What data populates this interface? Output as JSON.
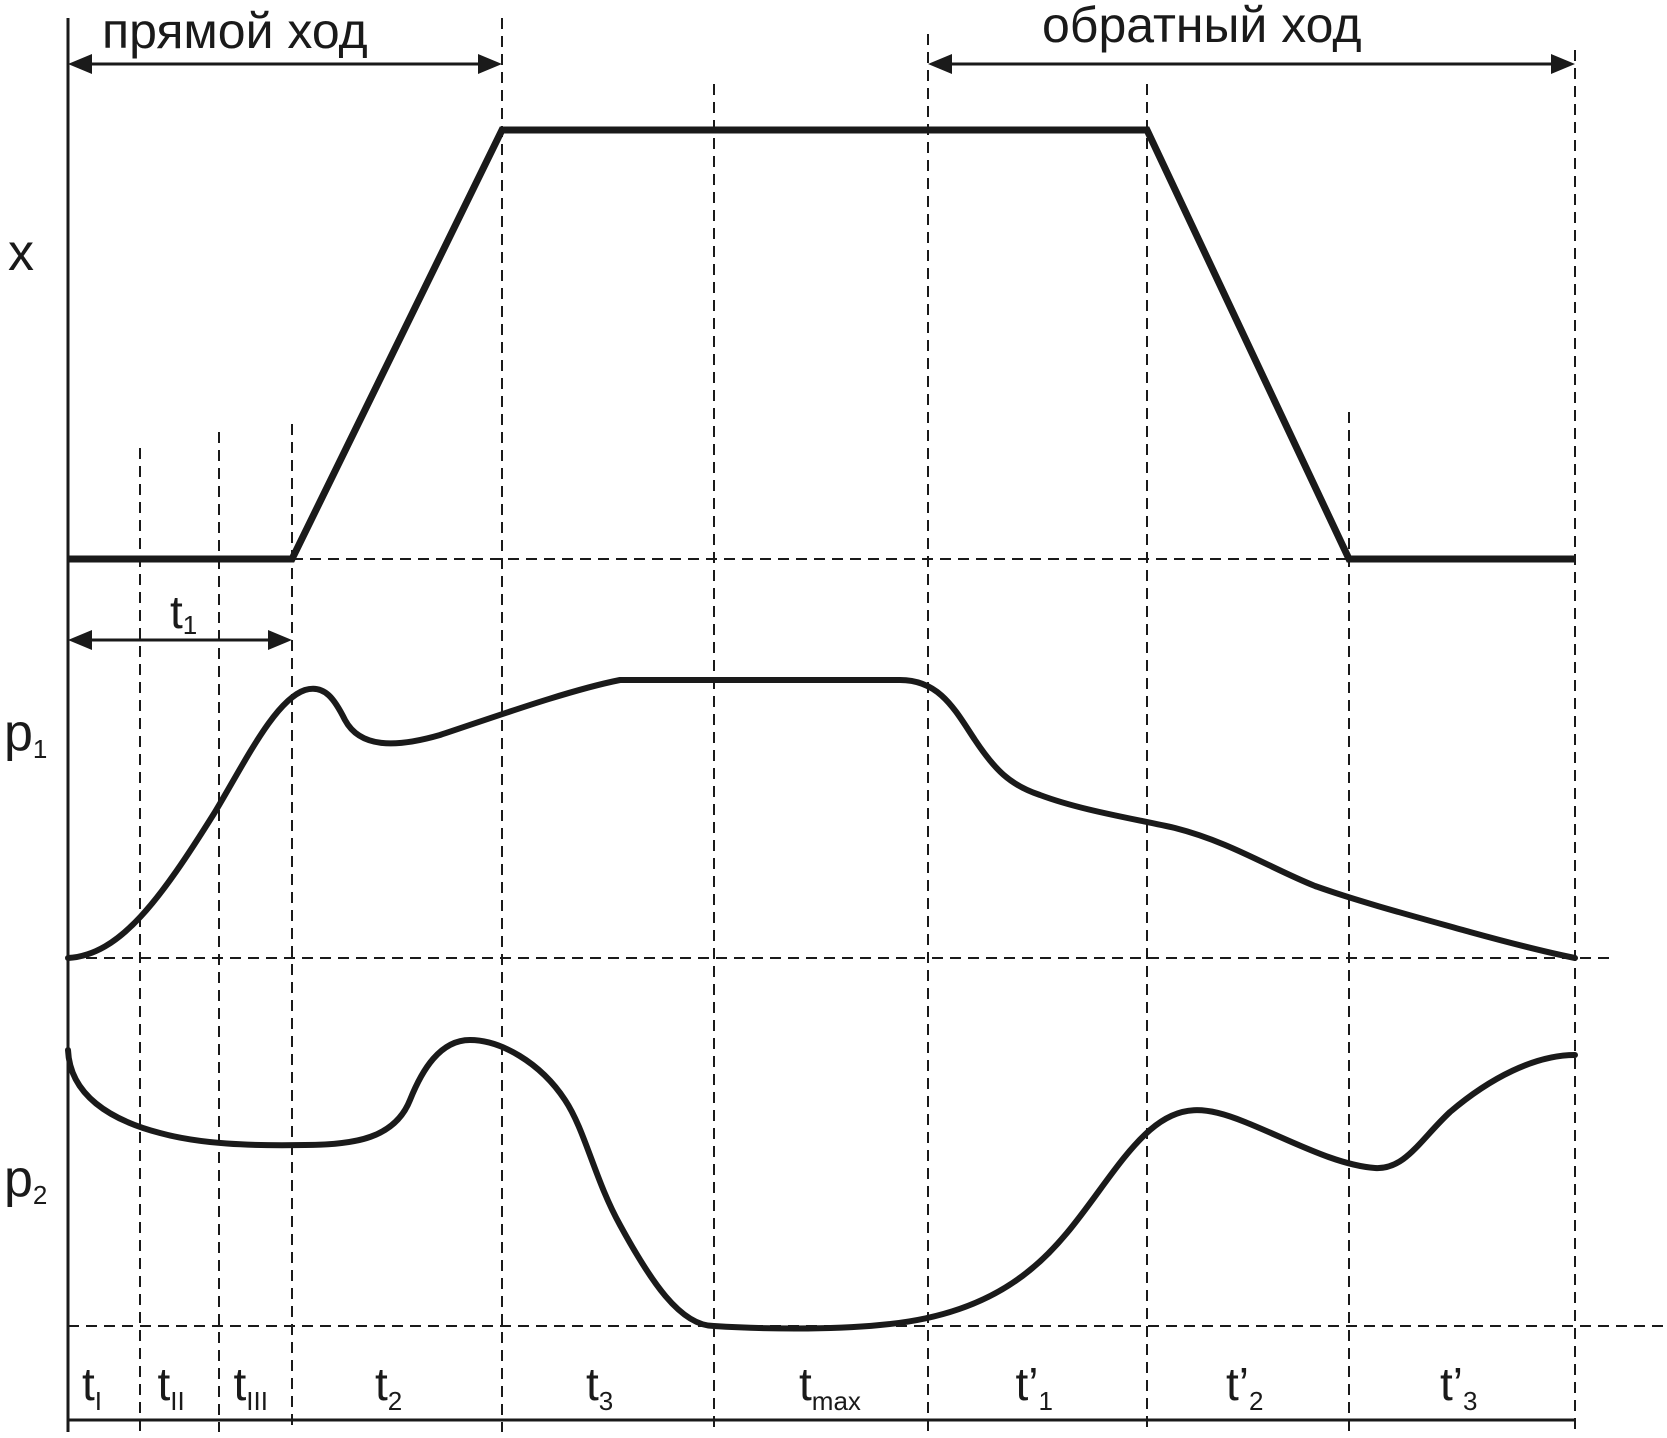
{
  "labels": {
    "forward_stroke": "прямой ход",
    "return_stroke": "обратный ход",
    "axis_x": "x",
    "axis_p1": {
      "base": "p",
      "sub": "1"
    },
    "axis_p2": {
      "base": "p",
      "sub": "2"
    },
    "t1": {
      "base": "t",
      "sub": "1"
    }
  },
  "intervals": [
    {
      "base": "t",
      "sub": "I"
    },
    {
      "base": "t",
      "sub": "II"
    },
    {
      "base": "t",
      "sub": "III"
    },
    {
      "base": "t",
      "sub": "2"
    },
    {
      "base": "t",
      "sub": "3"
    },
    {
      "base": "t",
      "sub": "max"
    },
    {
      "base": "t’",
      "sub": "1"
    },
    {
      "base": "t’",
      "sub": "2"
    },
    {
      "base": "t’",
      "sub": "3"
    }
  ],
  "colors": {
    "ink": "#1a1a1a",
    "background": "#ffffff"
  }
}
